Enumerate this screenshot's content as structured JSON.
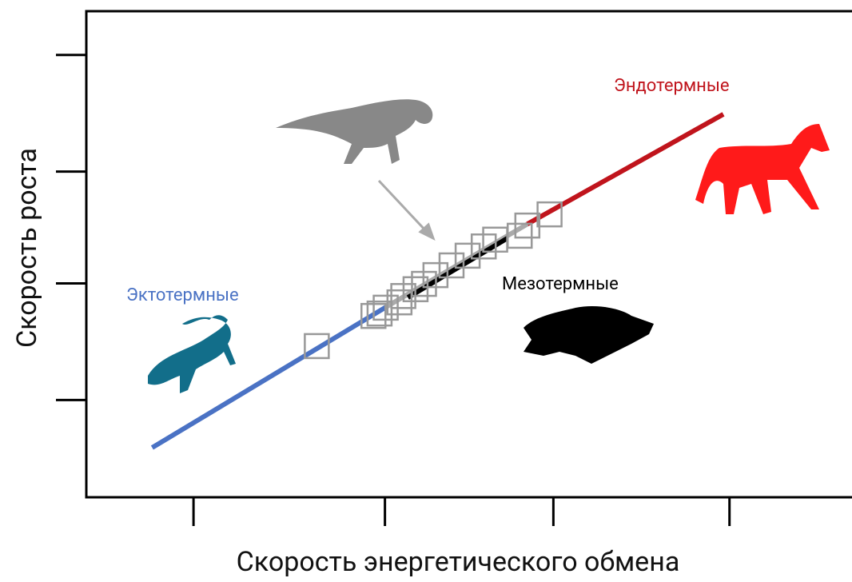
{
  "chart_data": {
    "type": "line",
    "x_label": "Скорость энергетического обмена",
    "y_label": "Скорость роста",
    "xlim": [
      0,
      10
    ],
    "ylim": [
      0,
      10
    ],
    "xticks": [
      1.4,
      3.9,
      6.1,
      8.4
    ],
    "yticks": [
      2.0,
      4.4,
      6.7,
      9.1
    ],
    "series": [
      {
        "color": "#aaaaaa",
        "x": [
          3.91,
          5.76
        ],
        "y": [
          3.91,
          5.62
        ]
      },
      {
        "name": "Эктотермные",
        "color": "#4a72c4",
        "x": [
          0.86,
          3.91
        ],
        "y": [
          1.02,
          3.91
        ]
      },
      {
        "name": "Мезотермные",
        "color": "#000000",
        "x": [
          4.2,
          5.5
        ],
        "y": [
          4.11,
          5.33
        ]
      },
      {
        "name": "Эндотермные",
        "color": "#c0141c",
        "x": [
          5.76,
          8.32
        ],
        "y": [
          5.62,
          7.88
        ]
      }
    ],
    "markers": {
      "color": "#999999",
      "x": [
        3.01,
        3.75,
        3.83,
        3.91,
        4.09,
        4.14,
        4.3,
        4.41,
        4.56,
        4.77,
        4.98,
        5.19,
        5.34,
        5.66,
        5.76,
        6.05
      ],
      "y": [
        3.11,
        3.73,
        3.78,
        3.9,
        4.01,
        4.14,
        4.28,
        4.39,
        4.57,
        4.77,
        4.97,
        5.16,
        5.3,
        5.38,
        5.59,
        5.82
      ]
    }
  }
}
